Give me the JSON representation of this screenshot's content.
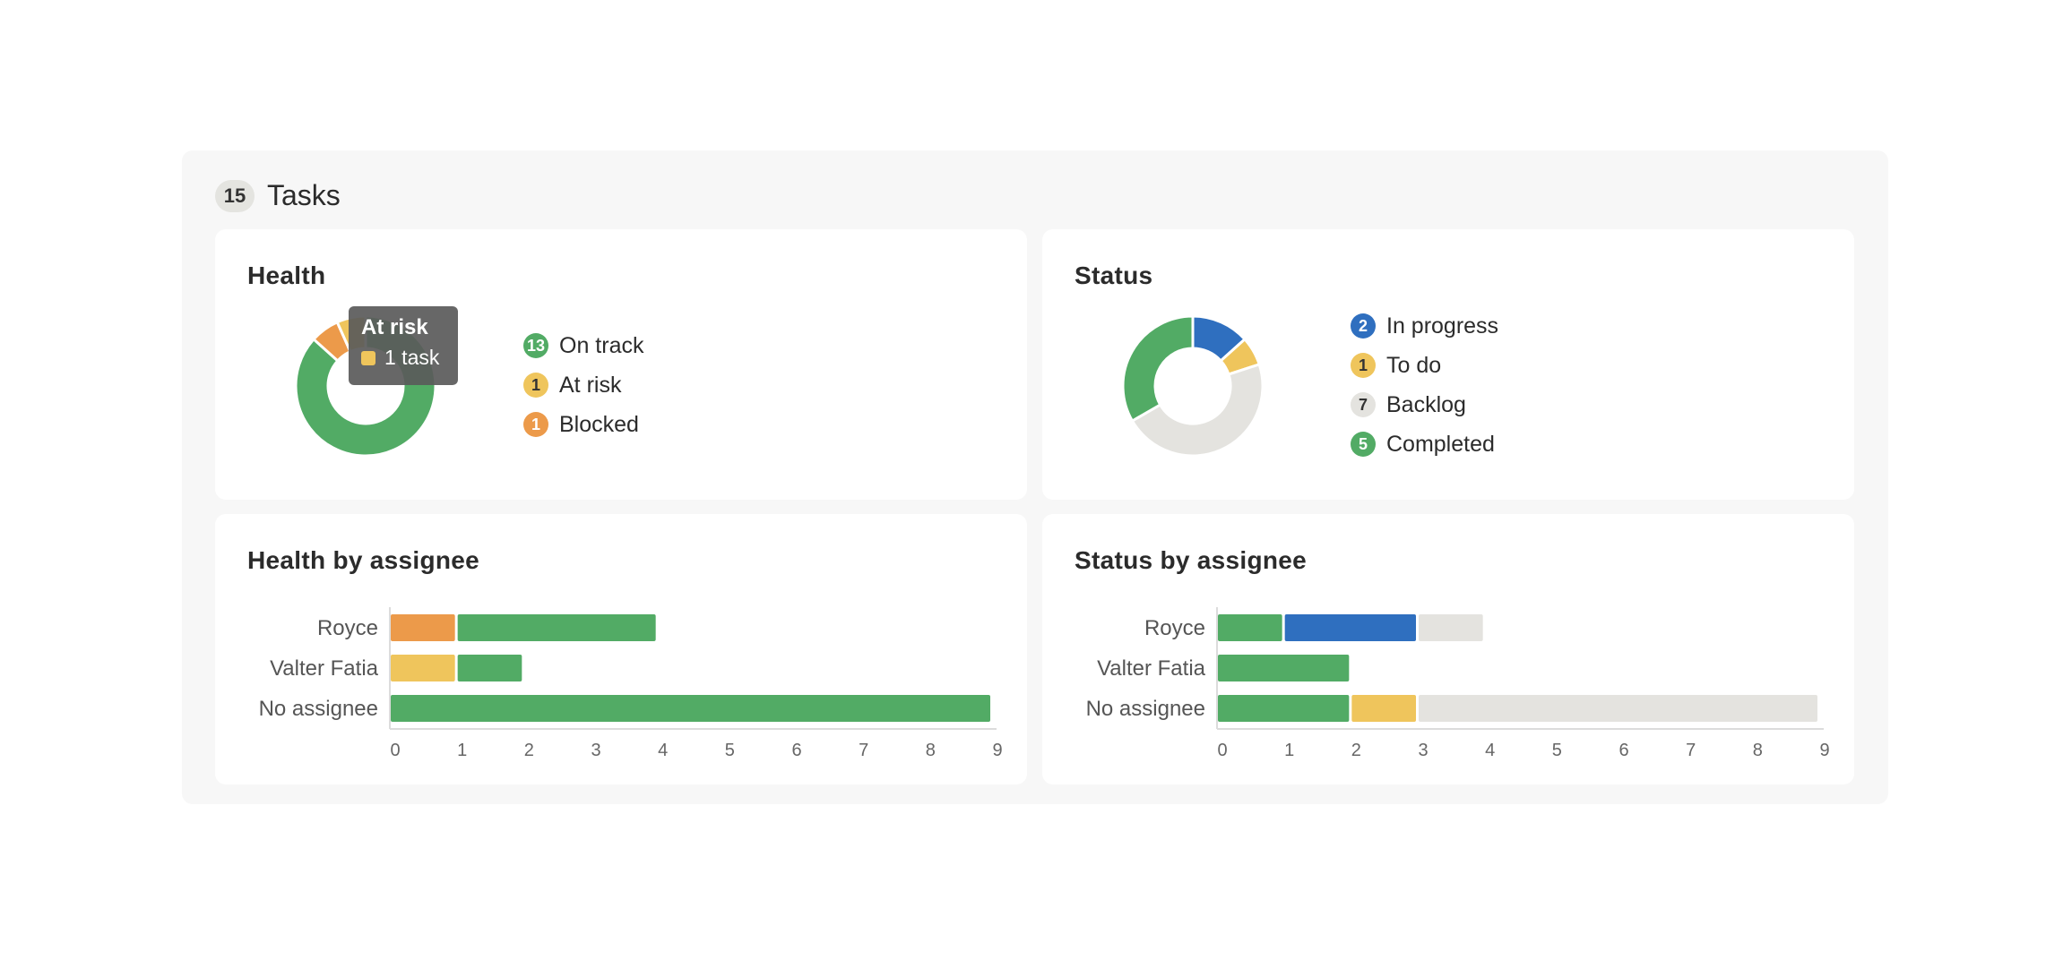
{
  "header": {
    "count": "15",
    "title": "Tasks"
  },
  "colors": {
    "green": "#52ab65",
    "yellow": "#efc55c",
    "orange": "#ec9a4a",
    "blue": "#2f6fbf",
    "gray": "#e4e3df"
  },
  "health": {
    "title": "Health",
    "legend": [
      {
        "count": "13",
        "label": "On track",
        "color": "#52ab65",
        "text_color": "#ffffff"
      },
      {
        "count": "1",
        "label": "At risk",
        "color": "#efc55c",
        "text_color": "#333333"
      },
      {
        "count": "1",
        "label": "Blocked",
        "color": "#ec9a4a",
        "text_color": "#ffffff"
      }
    ],
    "tooltip": {
      "title": "At risk",
      "value": "1 task"
    }
  },
  "status": {
    "title": "Status",
    "legend": [
      {
        "count": "2",
        "label": "In progress",
        "color": "#2f6fbf",
        "text_color": "#ffffff"
      },
      {
        "count": "1",
        "label": "To do",
        "color": "#efc55c",
        "text_color": "#333333"
      },
      {
        "count": "7",
        "label": "Backlog",
        "color": "#e4e3df",
        "text_color": "#333333"
      },
      {
        "count": "5",
        "label": "Completed",
        "color": "#52ab65",
        "text_color": "#ffffff"
      }
    ]
  },
  "health_by_assignee": {
    "title": "Health by assignee"
  },
  "status_by_assignee": {
    "title": "Status by assignee"
  },
  "chart_data": [
    {
      "type": "pie",
      "title": "Health",
      "donut": true,
      "slices": [
        {
          "label": "On track",
          "value": 13,
          "color": "#52ab65"
        },
        {
          "label": "Blocked",
          "value": 1,
          "color": "#ec9a4a"
        },
        {
          "label": "At risk",
          "value": 1,
          "color": "#efc55c"
        }
      ]
    },
    {
      "type": "pie",
      "title": "Status",
      "donut": true,
      "slices": [
        {
          "label": "In progress",
          "value": 2,
          "color": "#2f6fbf"
        },
        {
          "label": "To do",
          "value": 1,
          "color": "#efc55c"
        },
        {
          "label": "Backlog",
          "value": 7,
          "color": "#e4e3df"
        },
        {
          "label": "Completed",
          "value": 5,
          "color": "#52ab65"
        }
      ]
    },
    {
      "type": "bar",
      "orientation": "horizontal",
      "stacked": true,
      "title": "Health by assignee",
      "categories": [
        "Royce",
        "Valter Fatia",
        "No assignee"
      ],
      "xlim": [
        0,
        9
      ],
      "xticks": [
        "0",
        "1",
        "2",
        "3",
        "4",
        "5",
        "6",
        "7",
        "8",
        "9"
      ],
      "series": [
        {
          "name": "Blocked",
          "color": "#ec9a4a",
          "values": [
            1,
            0,
            0
          ]
        },
        {
          "name": "At risk",
          "color": "#efc55c",
          "values": [
            0,
            1,
            0
          ]
        },
        {
          "name": "On track",
          "color": "#52ab65",
          "values": [
            3,
            1,
            9
          ]
        }
      ]
    },
    {
      "type": "bar",
      "orientation": "horizontal",
      "stacked": true,
      "title": "Status by assignee",
      "categories": [
        "Royce",
        "Valter Fatia",
        "No assignee"
      ],
      "xlim": [
        0,
        9
      ],
      "xticks": [
        "0",
        "1",
        "2",
        "3",
        "4",
        "5",
        "6",
        "7",
        "8",
        "9"
      ],
      "series": [
        {
          "name": "Completed",
          "color": "#52ab65",
          "values": [
            1,
            2,
            2
          ]
        },
        {
          "name": "In progress",
          "color": "#2f6fbf",
          "values": [
            2,
            0,
            0
          ]
        },
        {
          "name": "To do",
          "color": "#efc55c",
          "values": [
            0,
            0,
            1
          ]
        },
        {
          "name": "Backlog",
          "color": "#e4e3df",
          "values": [
            1,
            0,
            6
          ]
        }
      ]
    }
  ]
}
